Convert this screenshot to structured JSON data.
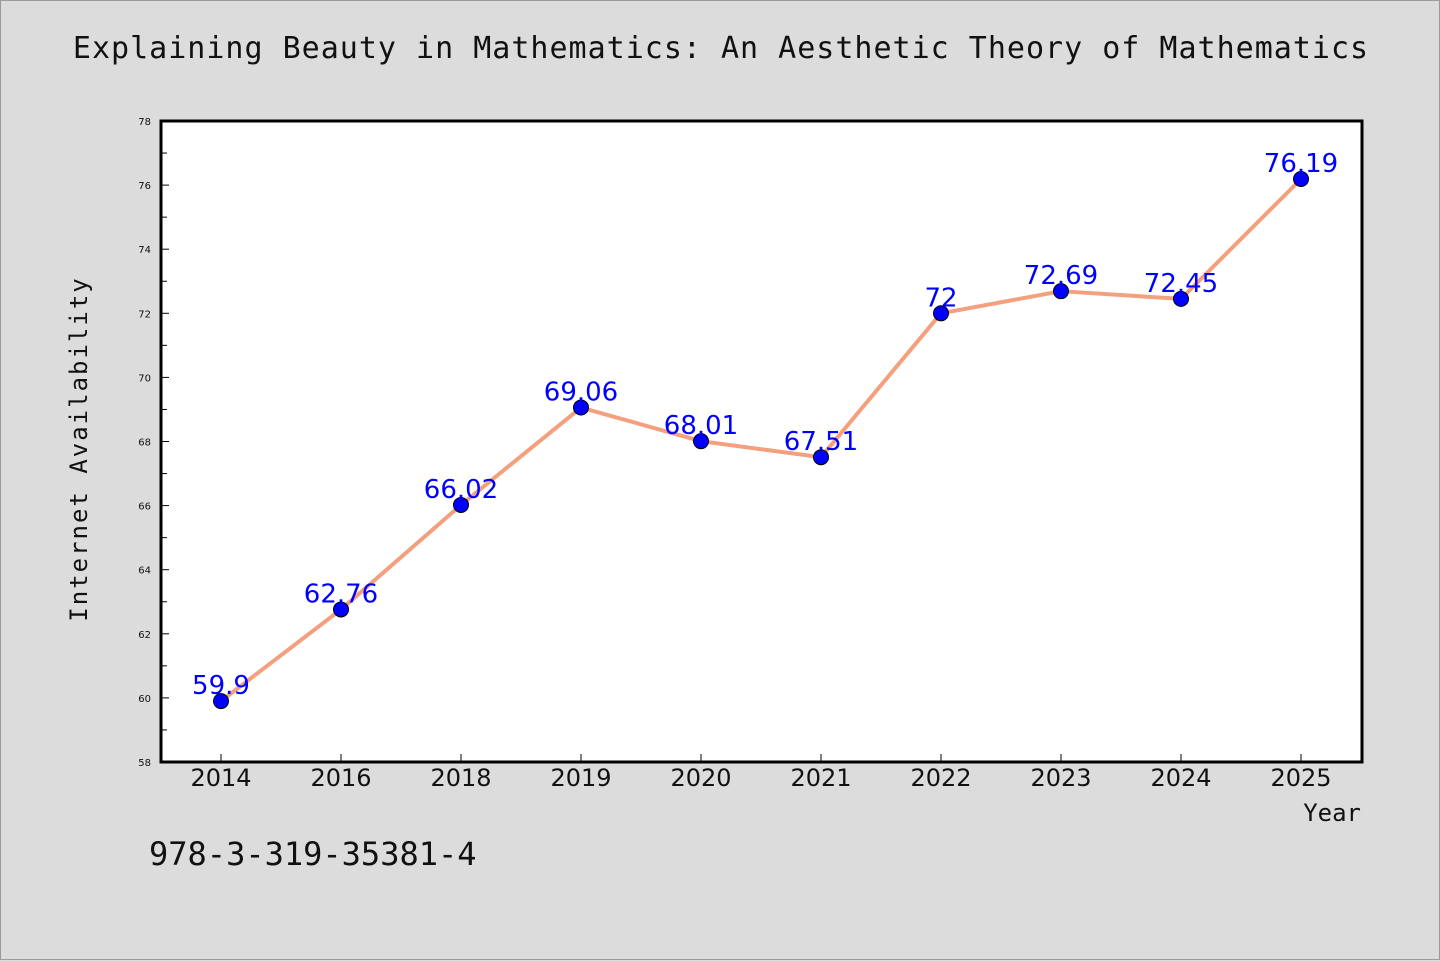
{
  "page": {
    "title": "Explaining Beauty in Mathematics: An Aesthetic Theory of Mathematics",
    "footer_text": "978-3-319-35381-4"
  },
  "colors": {
    "background": "#dcdcdc",
    "plot_background": "#ffffff",
    "line": "#f4a07e",
    "marker": "#0000ff",
    "data_label": "#0000ff"
  },
  "chart_data": {
    "type": "line",
    "categories": [
      "2014",
      "2016",
      "2018",
      "2019",
      "2020",
      "2021",
      "2022",
      "2023",
      "2024",
      "2025"
    ],
    "values": [
      59.9,
      62.76,
      66.02,
      69.06,
      68.01,
      67.51,
      72,
      72.69,
      72.45,
      76.19
    ],
    "data_labels": [
      "59.9",
      "62.76",
      "66.02",
      "69.06",
      "68.01",
      "67.51",
      "72",
      "72.69",
      "72.45",
      "76.19"
    ],
    "title": "Explaining Beauty in Mathematics: An Aesthetic Theory of Mathematics",
    "xlabel": "Year",
    "ylabel": "Internet Availability",
    "ylim": [
      58,
      78
    ],
    "yticks": [
      58,
      60,
      62,
      64,
      66,
      68,
      70,
      72,
      74,
      76,
      78
    ],
    "grid": false,
    "legend": "none"
  }
}
